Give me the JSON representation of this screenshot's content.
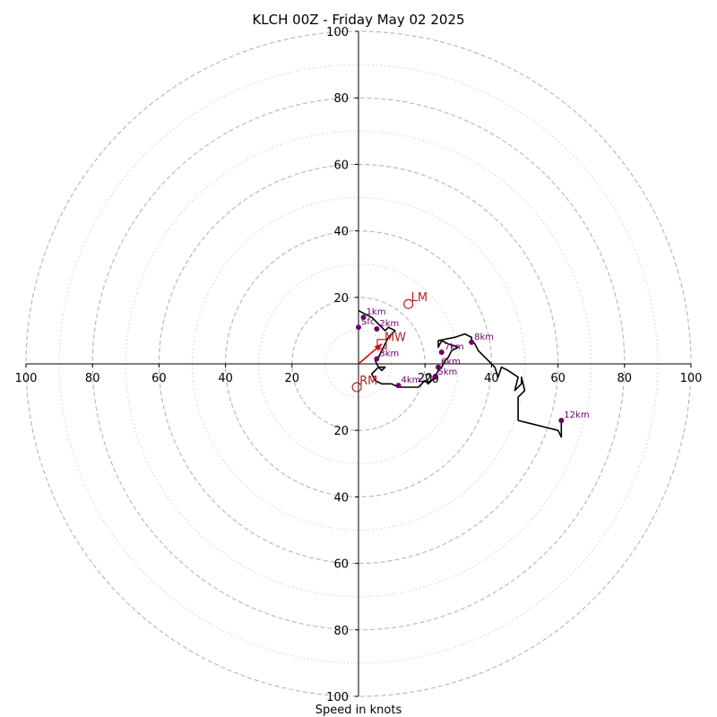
{
  "chart_data": {
    "type": "hodograph",
    "title": "KLCH 00Z - Friday May 02 2025",
    "xlabel": "Speed in knots",
    "xlim": [
      -100,
      100
    ],
    "ylim": [
      -100,
      100
    ],
    "axis_tick_labels": [
      "100",
      "80",
      "60",
      "40",
      "20",
      "20",
      "40",
      "60",
      "80",
      "100"
    ],
    "major_rings": [
      20,
      40,
      60,
      80,
      100
    ],
    "minor_rings": [
      10,
      30,
      50,
      70,
      90
    ],
    "center_label": "20",
    "colors": {
      "trace": "#000000",
      "height_marker": "#6a006a",
      "motion": "#b22222",
      "shear_arrow": "#dd0000",
      "grid": "#b5b5b5"
    },
    "trace": [
      [
        0,
        16
      ],
      [
        2,
        15
      ],
      [
        4,
        14
      ],
      [
        6,
        12
      ],
      [
        8,
        10
      ],
      [
        9,
        11
      ],
      [
        11,
        10
      ],
      [
        9,
        8
      ],
      [
        8,
        6
      ],
      [
        7,
        4
      ],
      [
        6,
        2
      ],
      [
        5,
        1
      ],
      [
        6,
        -1
      ],
      [
        7,
        -2
      ],
      [
        8,
        -1
      ],
      [
        6,
        -1
      ],
      [
        5,
        -2
      ],
      [
        4,
        -3
      ],
      [
        5,
        -5
      ],
      [
        7,
        -6
      ],
      [
        10,
        -6
      ],
      [
        12,
        -7
      ],
      [
        14,
        -7
      ],
      [
        16,
        -7
      ],
      [
        18,
        -7
      ],
      [
        20,
        -5
      ],
      [
        21,
        -6
      ],
      [
        22,
        -5
      ],
      [
        23,
        -4
      ],
      [
        24,
        -2
      ],
      [
        25,
        -1
      ],
      [
        26,
        1
      ],
      [
        27,
        2
      ],
      [
        28,
        4
      ],
      [
        30,
        5
      ],
      [
        27,
        6
      ],
      [
        25,
        7
      ],
      [
        24,
        5
      ],
      [
        24,
        7
      ],
      [
        29,
        8
      ],
      [
        32,
        9
      ],
      [
        34,
        8
      ],
      [
        34,
        7
      ],
      [
        35,
        6
      ],
      [
        36,
        4
      ],
      [
        38,
        2
      ],
      [
        41,
        -1
      ],
      [
        42,
        -4
      ],
      [
        43,
        -1
      ],
      [
        45,
        -2
      ],
      [
        48,
        -4
      ],
      [
        47,
        -8
      ],
      [
        49,
        -6
      ],
      [
        49,
        -5
      ],
      [
        49,
        -4
      ],
      [
        50,
        -8
      ],
      [
        49,
        -9
      ],
      [
        48,
        -10
      ],
      [
        48,
        -14
      ],
      [
        48,
        -17
      ],
      [
        52,
        -18
      ],
      [
        56,
        -19
      ],
      [
        60,
        -20
      ],
      [
        61,
        -22
      ],
      [
        61,
        -17
      ]
    ],
    "height_markers": [
      {
        "label": "Sfc",
        "u": 0,
        "v": 11
      },
      {
        "label": "1km",
        "u": 1.5,
        "v": 14
      },
      {
        "label": "2km",
        "u": 5.5,
        "v": 10.5
      },
      {
        "label": "3km",
        "u": 5.5,
        "v": 1.5
      },
      {
        "label": "4km",
        "u": 12,
        "v": -6.5
      },
      {
        "label": "5km",
        "u": 23,
        "v": -4
      },
      {
        "label": "6km",
        "u": 24,
        "v": -1
      },
      {
        "label": "7km",
        "u": 25,
        "v": 3.5
      },
      {
        "label": "8km",
        "u": 34,
        "v": 6.5
      },
      {
        "label": "12km",
        "u": 61,
        "v": -17
      }
    ],
    "storm_motions": [
      {
        "label": "LM",
        "u": 15,
        "v": 18,
        "shape": "circle"
      },
      {
        "label": "MW",
        "u": 7,
        "v": 6,
        "shape": "square"
      },
      {
        "label": "RM",
        "u": -0.5,
        "v": -7,
        "shape": "circle"
      }
    ],
    "shear_arrow": {
      "from": [
        0,
        0
      ],
      "to": [
        7,
        6
      ]
    }
  }
}
